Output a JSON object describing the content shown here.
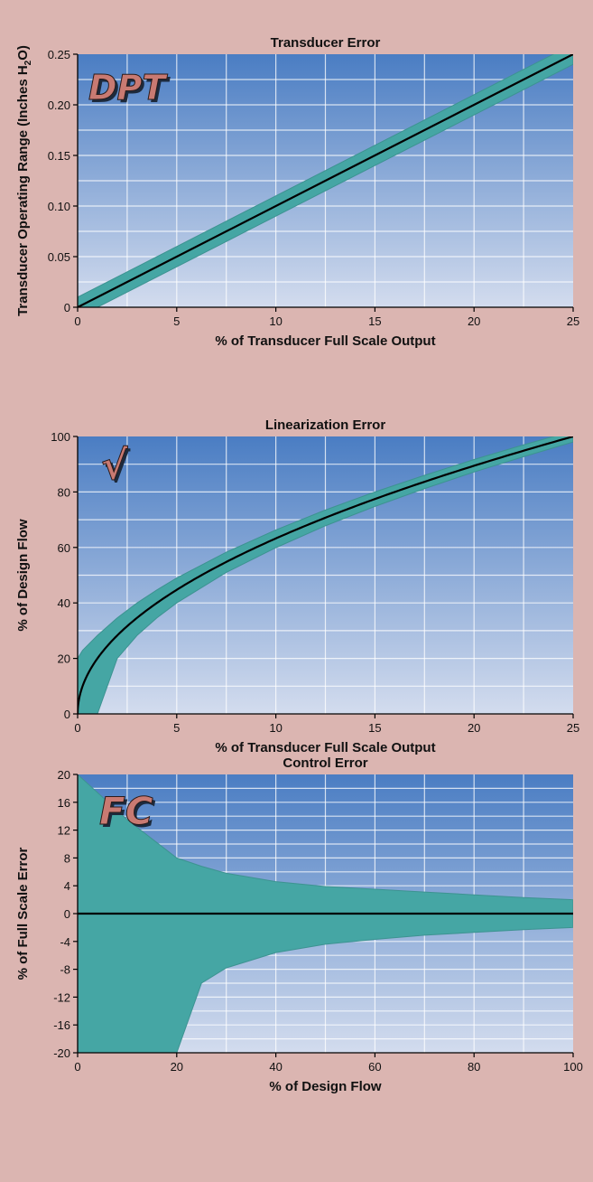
{
  "chart_data": [
    {
      "type": "line",
      "badge": "DPT",
      "title": "Transducer Error",
      "xlabel": "% of Transducer Full Scale Output",
      "ylabel": "Transducer Operating Range (Inches H",
      "ylabel_sub": "2",
      "ylabel_end": "O)",
      "xlim": [
        0,
        25
      ],
      "ylim": [
        0,
        0.25
      ],
      "xticks": [
        "0",
        "5",
        "10",
        "15",
        "20",
        "25"
      ],
      "yticks": [
        "0",
        "0.05",
        "0.10",
        "0.15",
        "0.20",
        "0.25"
      ],
      "grid": true,
      "series": [
        {
          "kind": "line",
          "x": [
            0,
            25
          ],
          "y": [
            0,
            0.25
          ]
        },
        {
          "kind": "band",
          "x": [
            0,
            25
          ],
          "y_upper": [
            0.01,
            0.26
          ],
          "y_lower": [
            -0.01,
            0.24
          ]
        }
      ]
    },
    {
      "type": "line",
      "badge": "√",
      "title": "Linearization Error",
      "xlabel": "% of Transducer Full Scale Output",
      "ylabel": "% of Design Flow",
      "xlim": [
        0,
        25
      ],
      "ylim": [
        0,
        100
      ],
      "xticks": [
        "0",
        "5",
        "10",
        "15",
        "20",
        "25"
      ],
      "yticks": [
        "0",
        "20",
        "40",
        "60",
        "80",
        "100"
      ],
      "grid": true,
      "series": [
        {
          "kind": "line",
          "x": [
            0,
            0.25,
            1,
            2,
            3,
            4,
            5,
            7.5,
            10,
            12.5,
            15,
            17.5,
            20,
            22.5,
            25
          ],
          "y": [
            0,
            10,
            20,
            28.3,
            34.6,
            40,
            44.7,
            54.8,
            63.2,
            70.7,
            77.5,
            83.7,
            89.4,
            94.9,
            100
          ]
        },
        {
          "kind": "band",
          "x": [
            0,
            0.25,
            1,
            2,
            3,
            4,
            5,
            7.5,
            10,
            12.5,
            15,
            17.5,
            20,
            22.5,
            25
          ],
          "y_upper": [
            20,
            22.9,
            28.3,
            34.6,
            40,
            44.7,
            49,
            58.3,
            66.3,
            73.5,
            80,
            86,
            91.7,
            97,
            102
          ],
          "y_lower": [
            0,
            0,
            0,
            20,
            28.3,
            34.6,
            40,
            51,
            59.9,
            67.8,
            74.8,
            81.2,
            87.2,
            92.7,
            98
          ]
        }
      ]
    },
    {
      "type": "area",
      "badge": "FC",
      "title": "Control Error",
      "xlabel": "% of Design Flow",
      "ylabel": "% of Full Scale Error",
      "xlim": [
        0,
        100
      ],
      "ylim": [
        -20,
        20
      ],
      "xticks": [
        "0",
        "20",
        "40",
        "60",
        "80",
        "100"
      ],
      "yticks": [
        "20",
        "16",
        "12",
        "8",
        "4",
        "0",
        "-4",
        "-8",
        "-12",
        "-16",
        "-20"
      ],
      "grid": true,
      "series": [
        {
          "kind": "line",
          "x": [
            0,
            100
          ],
          "y": [
            0,
            0
          ]
        },
        {
          "kind": "band",
          "x": [
            0,
            10,
            20,
            25,
            30,
            40,
            50,
            60,
            70,
            80,
            90,
            100
          ],
          "y_upper": [
            20,
            13.5,
            8,
            6.8,
            5.8,
            4.6,
            3.9,
            3.5,
            3.1,
            2.7,
            2.3,
            2
          ],
          "y_lower": [
            -20,
            -20,
            -20,
            -10,
            -7.8,
            -5.6,
            -4.4,
            -3.7,
            -3.1,
            -2.7,
            -2.3,
            -2
          ]
        }
      ]
    }
  ]
}
